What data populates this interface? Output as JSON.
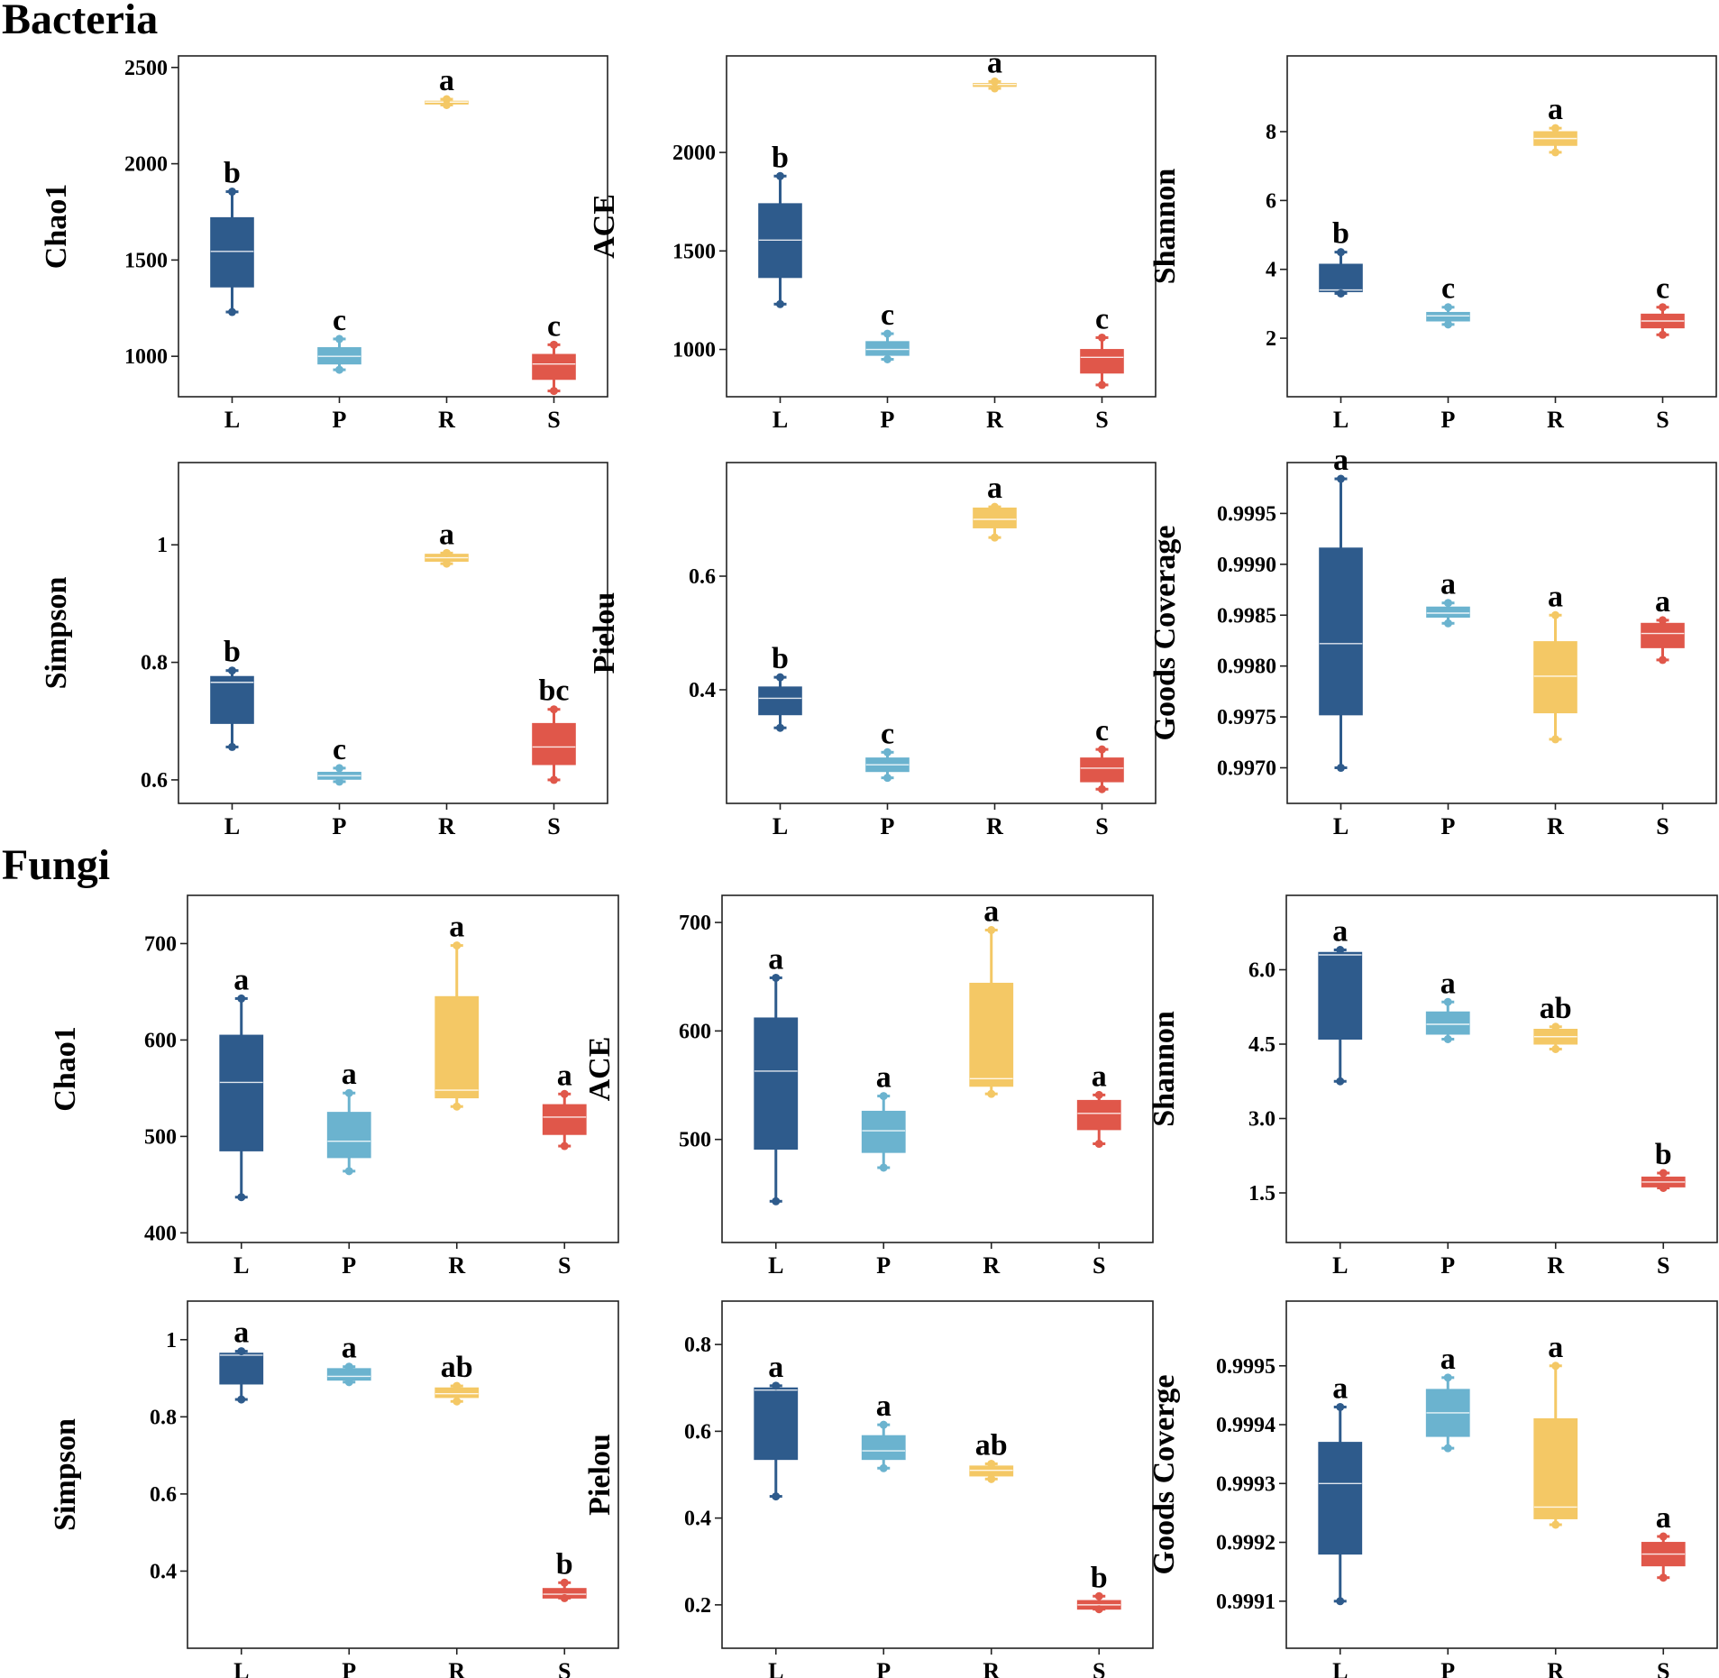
{
  "colors": {
    "L": "#2e5b8c",
    "P": "#6bb3cf",
    "R": "#f4c865",
    "S": "#e0574a"
  },
  "sections": {
    "bacteria": "Bacteria",
    "fungi": "Fungi"
  },
  "chart_data": [
    {
      "type": "box",
      "group": "Bacteria",
      "ylabel": "Chao1",
      "categories": [
        "L",
        "P",
        "R",
        "S"
      ],
      "ylim": [
        790,
        2560
      ],
      "yticks": [
        1000,
        1500,
        2000,
        2500
      ],
      "boxes": [
        {
          "min": 1230,
          "q1": 1360,
          "median": 1545,
          "q3": 1720,
          "max": 1855
        },
        {
          "min": 930,
          "q1": 960,
          "median": 1000,
          "q3": 1045,
          "max": 1090
        },
        {
          "min": 2305,
          "q1": 2310,
          "median": 2320,
          "q3": 2325,
          "max": 2335
        },
        {
          "min": 820,
          "q1": 880,
          "median": 960,
          "q3": 1010,
          "max": 1060
        }
      ],
      "significance": [
        "b",
        "c",
        "a",
        "c"
      ]
    },
    {
      "type": "box",
      "group": "Bacteria",
      "ylabel": "ACE",
      "categories": [
        "L",
        "P",
        "R",
        "S"
      ],
      "ylim": [
        760,
        2490
      ],
      "yticks": [
        1000,
        1500,
        2000
      ],
      "boxes": [
        {
          "min": 1230,
          "q1": 1365,
          "median": 1555,
          "q3": 1740,
          "max": 1880
        },
        {
          "min": 950,
          "q1": 970,
          "median": 1000,
          "q3": 1040,
          "max": 1080
        },
        {
          "min": 2325,
          "q1": 2335,
          "median": 2345,
          "q3": 2350,
          "max": 2360
        },
        {
          "min": 820,
          "q1": 880,
          "median": 960,
          "q3": 1000,
          "max": 1060
        }
      ],
      "significance": [
        "b",
        "c",
        "a",
        "c"
      ]
    },
    {
      "type": "box",
      "group": "Bacteria",
      "ylabel": "Shannon",
      "categories": [
        "L",
        "P",
        "R",
        "S"
      ],
      "ylim": [
        0.3,
        10.2
      ],
      "yticks": [
        2,
        4,
        6,
        8
      ],
      "boxes": [
        {
          "min": 3.3,
          "q1": 3.35,
          "median": 3.4,
          "q3": 4.15,
          "max": 4.5
        },
        {
          "min": 2.4,
          "q1": 2.5,
          "median": 2.65,
          "q3": 2.75,
          "max": 2.9
        },
        {
          "min": 7.4,
          "q1": 7.6,
          "median": 7.8,
          "q3": 8.0,
          "max": 8.1
        },
        {
          "min": 2.1,
          "q1": 2.3,
          "median": 2.5,
          "q3": 2.7,
          "max": 2.9
        }
      ],
      "significance": [
        "b",
        "c",
        "a",
        "c"
      ]
    },
    {
      "type": "box",
      "group": "Bacteria",
      "ylabel": "Simpson",
      "categories": [
        "L",
        "P",
        "R",
        "S"
      ],
      "ylim": [
        0.56,
        1.14
      ],
      "yticks": [
        0.6,
        0.8,
        1.0
      ],
      "boxes": [
        {
          "min": 0.656,
          "q1": 0.696,
          "median": 0.766,
          "q3": 0.776,
          "max": 0.786
        },
        {
          "min": 0.597,
          "q1": 0.601,
          "median": 0.607,
          "q3": 0.613,
          "max": 0.62
        },
        {
          "min": 0.968,
          "q1": 0.972,
          "median": 0.978,
          "q3": 0.984,
          "max": 0.986
        },
        {
          "min": 0.6,
          "q1": 0.626,
          "median": 0.656,
          "q3": 0.696,
          "max": 0.72
        }
      ],
      "significance": [
        "b",
        "c",
        "a",
        "bc"
      ]
    },
    {
      "type": "box",
      "group": "Bacteria",
      "ylabel": "Pielou",
      "categories": [
        "L",
        "P",
        "R",
        "S"
      ],
      "ylim": [
        0.2,
        0.8
      ],
      "yticks": [
        0.4,
        0.6
      ],
      "boxes": [
        {
          "min": 0.333,
          "q1": 0.356,
          "median": 0.385,
          "q3": 0.405,
          "max": 0.422
        },
        {
          "min": 0.245,
          "q1": 0.256,
          "median": 0.268,
          "q3": 0.28,
          "max": 0.29
        },
        {
          "min": 0.668,
          "q1": 0.685,
          "median": 0.7,
          "q3": 0.72,
          "max": 0.722
        },
        {
          "min": 0.225,
          "q1": 0.238,
          "median": 0.262,
          "q3": 0.28,
          "max": 0.295
        }
      ],
      "significance": [
        "b",
        "c",
        "a",
        "c"
      ]
    },
    {
      "type": "box",
      "group": "Bacteria",
      "ylabel": "Goods Coverage",
      "categories": [
        "L",
        "P",
        "R",
        "S"
      ],
      "ylim": [
        0.99665,
        1.0
      ],
      "yticks": [
        0.997,
        0.9975,
        0.998,
        0.9985,
        0.999,
        0.9995
      ],
      "tick_labels": [
        "0.9970",
        "0.9975",
        "0.9980",
        "0.9985",
        "0.9990",
        "0.9995"
      ],
      "boxes": [
        {
          "min": 0.997,
          "q1": 0.99752,
          "median": 0.99822,
          "q3": 0.99916,
          "max": 0.99984
        },
        {
          "min": 0.99842,
          "q1": 0.99848,
          "median": 0.99852,
          "q3": 0.99858,
          "max": 0.99862
        },
        {
          "min": 0.99728,
          "q1": 0.99754,
          "median": 0.9979,
          "q3": 0.99824,
          "max": 0.9985
        },
        {
          "min": 0.99806,
          "q1": 0.99818,
          "median": 0.99832,
          "q3": 0.99842,
          "max": 0.99845
        }
      ],
      "significance": [
        "a",
        "a",
        "a",
        "a"
      ]
    },
    {
      "type": "box",
      "group": "Fungi",
      "ylabel": "Chao1",
      "categories": [
        "L",
        "P",
        "R",
        "S"
      ],
      "ylim": [
        390,
        750
      ],
      "yticks": [
        400,
        500,
        600,
        700
      ],
      "boxes": [
        {
          "min": 437,
          "q1": 485,
          "median": 556,
          "q3": 605,
          "max": 643
        },
        {
          "min": 464,
          "q1": 478,
          "median": 495,
          "q3": 525,
          "max": 545
        },
        {
          "min": 531,
          "q1": 540,
          "median": 548,
          "q3": 645,
          "max": 698
        },
        {
          "min": 490,
          "q1": 502,
          "median": 520,
          "q3": 533,
          "max": 544
        }
      ],
      "significance": [
        "a",
        "a",
        "a",
        "a"
      ]
    },
    {
      "type": "box",
      "group": "Fungi",
      "ylabel": "ACE",
      "categories": [
        "L",
        "P",
        "R",
        "S"
      ],
      "ylim": [
        405,
        725
      ],
      "yticks": [
        500,
        600,
        700
      ],
      "boxes": [
        {
          "min": 443,
          "q1": 491,
          "median": 563,
          "q3": 612,
          "max": 649
        },
        {
          "min": 474,
          "q1": 488,
          "median": 508,
          "q3": 526,
          "max": 540
        },
        {
          "min": 542,
          "q1": 549,
          "median": 556,
          "q3": 644,
          "max": 693
        },
        {
          "min": 496,
          "q1": 509,
          "median": 524,
          "q3": 536,
          "max": 541
        }
      ],
      "significance": [
        "a",
        "a",
        "a",
        "a"
      ]
    },
    {
      "type": "box",
      "group": "Fungi",
      "ylabel": "Shannon",
      "categories": [
        "L",
        "P",
        "R",
        "S"
      ],
      "ylim": [
        0.5,
        7.5
      ],
      "yticks": [
        1.5,
        3.0,
        4.5,
        6.0
      ],
      "tick_labels": [
        "1.5",
        "3.0",
        "4.5",
        "6.0"
      ],
      "boxes": [
        {
          "min": 3.75,
          "q1": 4.6,
          "median": 6.3,
          "q3": 6.35,
          "max": 6.4
        },
        {
          "min": 4.6,
          "q1": 4.7,
          "median": 4.9,
          "q3": 5.15,
          "max": 5.35
        },
        {
          "min": 4.4,
          "q1": 4.5,
          "median": 4.65,
          "q3": 4.8,
          "max": 4.85
        },
        {
          "min": 1.6,
          "q1": 1.62,
          "median": 1.72,
          "q3": 1.82,
          "max": 1.9
        }
      ],
      "significance": [
        "a",
        "a",
        "ab",
        "b"
      ]
    },
    {
      "type": "box",
      "group": "Fungi",
      "ylabel": "Simpson",
      "categories": [
        "L",
        "P",
        "R",
        "S"
      ],
      "ylim": [
        0.2,
        1.1
      ],
      "yticks": [
        0.4,
        0.6,
        0.8,
        1.0
      ],
      "boxes": [
        {
          "min": 0.845,
          "q1": 0.885,
          "median": 0.96,
          "q3": 0.965,
          "max": 0.97
        },
        {
          "min": 0.89,
          "q1": 0.895,
          "median": 0.905,
          "q3": 0.925,
          "max": 0.93
        },
        {
          "min": 0.84,
          "q1": 0.85,
          "median": 0.86,
          "q3": 0.875,
          "max": 0.88
        },
        {
          "min": 0.33,
          "q1": 0.33,
          "median": 0.34,
          "q3": 0.355,
          "max": 0.37
        }
      ],
      "significance": [
        "a",
        "a",
        "ab",
        "b"
      ]
    },
    {
      "type": "box",
      "group": "Fungi",
      "ylabel": "Pielou",
      "categories": [
        "L",
        "P",
        "R",
        "S"
      ],
      "ylim": [
        0.1,
        0.9
      ],
      "yticks": [
        0.2,
        0.4,
        0.6,
        0.8
      ],
      "boxes": [
        {
          "min": 0.45,
          "q1": 0.535,
          "median": 0.695,
          "q3": 0.7,
          "max": 0.705
        },
        {
          "min": 0.515,
          "q1": 0.535,
          "median": 0.555,
          "q3": 0.59,
          "max": 0.615
        },
        {
          "min": 0.49,
          "q1": 0.497,
          "median": 0.51,
          "q3": 0.52,
          "max": 0.525
        },
        {
          "min": 0.19,
          "q1": 0.19,
          "median": 0.2,
          "q3": 0.21,
          "max": 0.22
        }
      ],
      "significance": [
        "a",
        "a",
        "ab",
        "b"
      ]
    },
    {
      "type": "box",
      "group": "Fungi",
      "ylabel": "Goods Coverge",
      "categories": [
        "L",
        "P",
        "R",
        "S"
      ],
      "ylim": [
        0.99902,
        0.99961
      ],
      "yticks": [
        0.9991,
        0.9992,
        0.9993,
        0.9994,
        0.9995
      ],
      "boxes": [
        {
          "min": 0.9991,
          "q1": 0.99918,
          "median": 0.9993,
          "q3": 0.99937,
          "max": 0.99943
        },
        {
          "min": 0.99936,
          "q1": 0.99938,
          "median": 0.99942,
          "q3": 0.99946,
          "max": 0.99948
        },
        {
          "min": 0.99923,
          "q1": 0.99924,
          "median": 0.99926,
          "q3": 0.99941,
          "max": 0.9995
        },
        {
          "min": 0.99914,
          "q1": 0.99916,
          "median": 0.99918,
          "q3": 0.9992,
          "max": 0.99921
        }
      ],
      "significance": [
        "a",
        "a",
        "a",
        "a"
      ]
    }
  ]
}
